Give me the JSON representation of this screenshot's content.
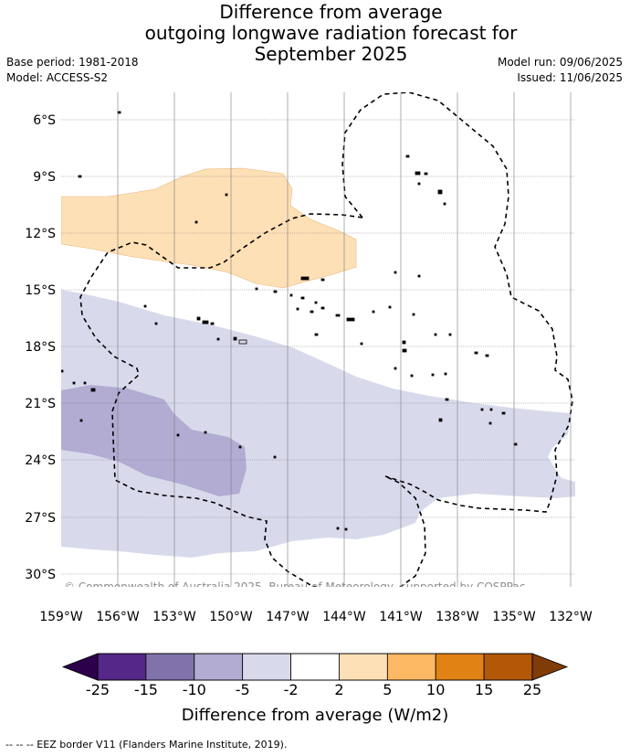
{
  "title": {
    "line1": "Difference from average",
    "line2": "outgoing longwave radiation forecast for",
    "line3": "September 2025"
  },
  "meta": {
    "base_period": "Base period: 1981-2018",
    "model": "Model: ACCESS-S2",
    "model_run": "Model run: 09/06/2025",
    "issued": "Issued: 11/06/2025"
  },
  "map": {
    "lat_labels": [
      "6°S",
      "9°S",
      "12°S",
      "15°S",
      "18°S",
      "21°S",
      "24°S",
      "27°S",
      "30°S"
    ],
    "lon_labels": [
      "159°W",
      "156°W",
      "153°W",
      "150°W",
      "147°W",
      "144°W",
      "141°W",
      "138°W",
      "135°W",
      "132°W"
    ],
    "copyright": "© Commonwealth of Australia 2025, Bureau of Meteorology, supported by COSPPac",
    "gridlines": true
  },
  "colorbar": {
    "label": "Difference from average (W/m2)",
    "ticks": [
      "-25",
      "-15",
      "-10",
      "-5",
      "-2",
      "2",
      "5",
      "10",
      "15",
      "25"
    ],
    "under_color": "#2d004b",
    "over_color": "#7f3b08",
    "colors": [
      "#542788",
      "#8073ac",
      "#b2abd2",
      "#d8daeb",
      "#ffffff",
      "#fee0b6",
      "#fdb863",
      "#e08214",
      "#b35806"
    ]
  },
  "footnote": "--  --  -- EEZ border V11 (Flanders Marine Institute, 2019)."
}
